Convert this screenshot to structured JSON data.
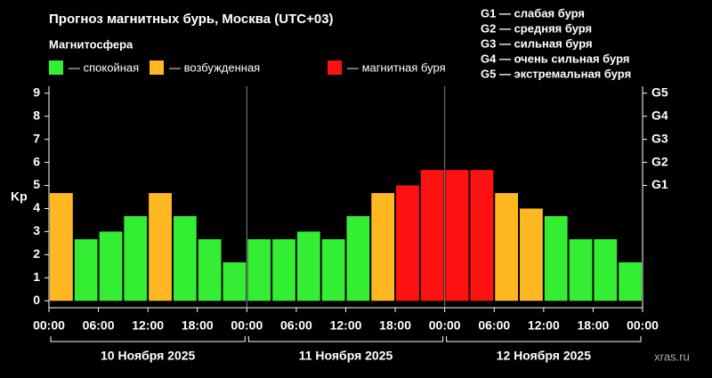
{
  "chart_data": {
    "type": "bar",
    "title": "Прогноз магнитных бурь, Москва (UTC+03)",
    "legend_title": "Магнитосфера",
    "legend": [
      {
        "name": "— спокойная",
        "color": "#33ee33"
      },
      {
        "name": "— возбужденная",
        "color": "#ffb822"
      },
      {
        "name": "— магнитная буря",
        "color": "#ff1111"
      }
    ],
    "g_legend": [
      "G1 — слабая буря",
      "G2 — средняя буря",
      "G3 — сильная буря",
      "G4 — очень сильная буря",
      "G5 — экстремальная буря"
    ],
    "ylabel": "Kp",
    "values": [
      4.67,
      2.67,
      3.0,
      3.67,
      4.67,
      3.67,
      2.67,
      1.67,
      2.67,
      2.67,
      3.0,
      2.67,
      3.67,
      4.67,
      5.0,
      5.67,
      5.67,
      5.67,
      4.67,
      4.0,
      3.67,
      2.67,
      2.67,
      1.67
    ],
    "colors": [
      "#ffb822",
      "#33ee33",
      "#33ee33",
      "#33ee33",
      "#ffb822",
      "#33ee33",
      "#33ee33",
      "#33ee33",
      "#33ee33",
      "#33ee33",
      "#33ee33",
      "#33ee33",
      "#33ee33",
      "#ffb822",
      "#ff1111",
      "#ff1111",
      "#ff1111",
      "#ff1111",
      "#ffb822",
      "#ffb822",
      "#33ee33",
      "#33ee33",
      "#33ee33",
      "#33ee33"
    ],
    "xtick_labels": [
      "00:00",
      "06:00",
      "12:00",
      "18:00",
      "00:00",
      "06:00",
      "12:00",
      "18:00",
      "00:00",
      "06:00",
      "12:00",
      "18:00",
      "00:00"
    ],
    "days": [
      "10 Ноября 2025",
      "11 Ноября 2025",
      "12 Ноября 2025"
    ],
    "ylim": [
      -0.3,
      9.3
    ],
    "yticks": [
      0,
      1,
      2,
      3,
      4,
      5,
      6,
      7,
      8,
      9
    ],
    "y2lim": [
      -0.3,
      9.3
    ],
    "y2ticks": [
      {
        "value": 5,
        "label": "G1"
      },
      {
        "value": 6,
        "label": "G2"
      },
      {
        "value": 7,
        "label": "G3"
      },
      {
        "value": 8,
        "label": "G4"
      },
      {
        "value": 9,
        "label": "G5"
      }
    ],
    "watermark": "xras.ru"
  }
}
